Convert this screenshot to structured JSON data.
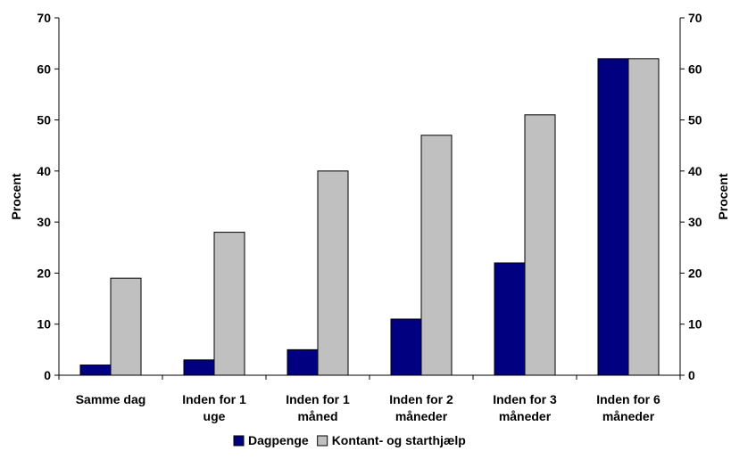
{
  "chart_data": {
    "type": "bar",
    "categories": [
      [
        "Samme dag"
      ],
      [
        "Inden for 1",
        "uge"
      ],
      [
        "Inden for 1",
        "måned"
      ],
      [
        "Inden for 2",
        "måneder"
      ],
      [
        "Inden for 3",
        "måneder"
      ],
      [
        "Inden for 6",
        "måneder"
      ]
    ],
    "series": [
      {
        "name": "Dagpenge",
        "color": "#000080",
        "values": [
          2,
          3,
          5,
          11,
          22,
          62
        ]
      },
      {
        "name": "Kontant- og starthjælp",
        "color": "#C0C0C0",
        "values": [
          19,
          28,
          40,
          47,
          51,
          62
        ]
      }
    ],
    "ylabel": "Procent",
    "ylabel_right": "Procent",
    "ylim": [
      0,
      70
    ],
    "yticks": [
      0,
      10,
      20,
      30,
      40,
      50,
      60,
      70
    ],
    "grid": false,
    "legend_position": "bottom"
  }
}
